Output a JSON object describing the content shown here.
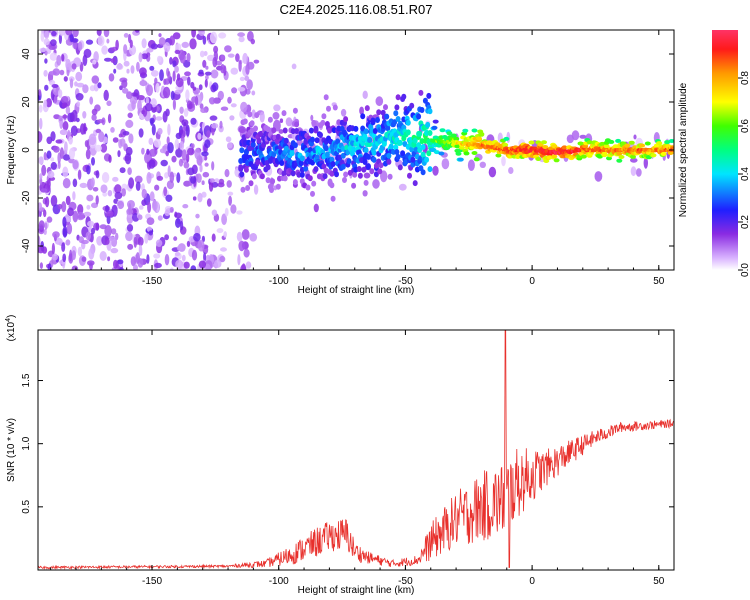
{
  "title": "C2E4.2025.116.08.51.R07",
  "chart_data": [
    {
      "type": "heatmap",
      "xlabel": "Height of straight line (km)",
      "ylabel": "Frequency (Hz)",
      "xlim": [
        -195,
        56
      ],
      "ylim": [
        -50,
        50
      ],
      "xticks": [
        -150,
        -100,
        -50,
        0,
        50
      ],
      "yticks": [
        -40,
        -20,
        0,
        20,
        40
      ],
      "xtick_labels": [
        "-150",
        "-100",
        "-50",
        "0",
        "50"
      ],
      "ytick_labels": [
        "-40",
        "-20",
        "0",
        "20",
        "40"
      ],
      "colorbar": {
        "label": "Normalized spectral amplitude",
        "range": [
          0,
          1
        ],
        "ticks": [
          0.0,
          0.2,
          0.4,
          0.6,
          0.8
        ],
        "tick_labels": [
          "0.0",
          "0.2",
          "0.4",
          "0.6",
          "0.8"
        ],
        "colormap": "rainbow (violet to red)"
      },
      "ridge": [
        {
          "x": -110,
          "freq": -2,
          "amp": 0.3
        },
        {
          "x": -100,
          "freq": -1,
          "amp": 0.3
        },
        {
          "x": -90,
          "freq": -2,
          "amp": 0.35
        },
        {
          "x": -80,
          "freq": 0,
          "amp": 0.35
        },
        {
          "x": -70,
          "freq": 2,
          "amp": 0.4
        },
        {
          "x": -60,
          "freq": 4,
          "amp": 0.4
        },
        {
          "x": -50,
          "freq": 6,
          "amp": 0.45
        },
        {
          "x": -40,
          "freq": 4,
          "amp": 0.55
        },
        {
          "x": -30,
          "freq": 3,
          "amp": 0.7
        },
        {
          "x": -20,
          "freq": 2,
          "amp": 0.85
        },
        {
          "x": -10,
          "freq": 0,
          "amp": 0.9
        },
        {
          "x": 0,
          "freq": 0,
          "amp": 0.95
        },
        {
          "x": 10,
          "freq": -1,
          "amp": 0.95
        },
        {
          "x": 20,
          "freq": 0,
          "amp": 0.9
        },
        {
          "x": 30,
          "freq": 0,
          "amp": 0.85
        },
        {
          "x": 40,
          "freq": 0,
          "amp": 0.85
        },
        {
          "x": 56,
          "freq": 0,
          "amp": 0.85
        }
      ]
    },
    {
      "type": "line",
      "xlabel": "Height of straight line (km)",
      "ylabel": "SNR (10 * v/v)",
      "y_multiplier_label": "(x10",
      "y_multiplier_exp": "4",
      "y_multiplier_close": ")",
      "xlim": [
        -195,
        56
      ],
      "ylim": [
        0,
        1.9
      ],
      "xticks": [
        -150,
        -100,
        -50,
        0,
        50
      ],
      "yticks": [
        0.5,
        1.0,
        1.5
      ],
      "xtick_labels": [
        "-150",
        "-100",
        "-50",
        "0",
        "50"
      ],
      "ytick_labels": [
        "0.5",
        "1.0",
        "1.5"
      ],
      "color": "#e8302c",
      "envelope": [
        {
          "x": -195,
          "base": 0.02,
          "amp": 0.01
        },
        {
          "x": -120,
          "base": 0.03,
          "amp": 0.01
        },
        {
          "x": -105,
          "base": 0.05,
          "amp": 0.03
        },
        {
          "x": -95,
          "base": 0.12,
          "amp": 0.08
        },
        {
          "x": -85,
          "base": 0.22,
          "amp": 0.12
        },
        {
          "x": -80,
          "base": 0.27,
          "amp": 0.12
        },
        {
          "x": -73,
          "base": 0.28,
          "amp": 0.14
        },
        {
          "x": -70,
          "base": 0.15,
          "amp": 0.08
        },
        {
          "x": -65,
          "base": 0.1,
          "amp": 0.05
        },
        {
          "x": -55,
          "base": 0.05,
          "amp": 0.03
        },
        {
          "x": -45,
          "base": 0.08,
          "amp": 0.04
        },
        {
          "x": -40,
          "base": 0.22,
          "amp": 0.15
        },
        {
          "x": -30,
          "base": 0.4,
          "amp": 0.22
        },
        {
          "x": -20,
          "base": 0.5,
          "amp": 0.28
        },
        {
          "x": -12,
          "base": 0.55,
          "amp": 0.3
        },
        {
          "x": -5,
          "base": 0.7,
          "amp": 0.28
        },
        {
          "x": 5,
          "base": 0.8,
          "amp": 0.15
        },
        {
          "x": 15,
          "base": 0.93,
          "amp": 0.1
        },
        {
          "x": 25,
          "base": 1.05,
          "amp": 0.06
        },
        {
          "x": 35,
          "base": 1.13,
          "amp": 0.04
        },
        {
          "x": 56,
          "base": 1.16,
          "amp": 0.03
        }
      ],
      "spike": {
        "x": -10.5,
        "y": 1.9
      },
      "dip": {
        "x": -9,
        "y": 0.02
      }
    }
  ]
}
